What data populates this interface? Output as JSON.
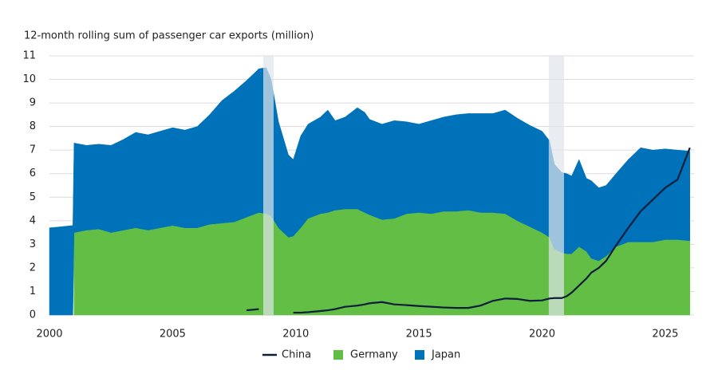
{
  "chart_data": {
    "type": "stacked-area-line",
    "y_label": "12-month rolling sum of passenger car exports (million)",
    "xlim": [
      2000,
      2026.17
    ],
    "xticks": [
      2000,
      2005,
      2010,
      2015,
      2020,
      2025
    ],
    "ylim": [
      0,
      11
    ],
    "yticks": [
      0,
      1,
      2,
      3,
      4,
      5,
      6,
      7,
      8,
      9,
      10,
      11
    ],
    "grid": true,
    "legend": "bottom",
    "shaded_periods": [
      [
        2008.68,
        2009.1
      ],
      [
        2020.27,
        2020.89
      ]
    ],
    "shade_color": "#dfe5ec",
    "x": [
      2000,
      2000.5,
      2000.95,
      2001,
      2001.5,
      2002,
      2002.5,
      2003,
      2003.5,
      2004,
      2004.5,
      2005,
      2005.5,
      2006,
      2006.5,
      2007,
      2007.5,
      2008,
      2008.5,
      2008.8,
      2009,
      2009.3,
      2009.7,
      2009.9,
      2010.2,
      2010.5,
      2011,
      2011.3,
      2011.6,
      2012,
      2012.5,
      2012.8,
      2013,
      2013.5,
      2014,
      2014.5,
      2015,
      2015.5,
      2016,
      2016.5,
      2017,
      2017.5,
      2018,
      2018.5,
      2019,
      2019.5,
      2020,
      2020.3,
      2020.5,
      2020.8,
      2021,
      2021.2,
      2021.5,
      2021.8,
      2022,
      2022.3,
      2022.6,
      2023,
      2023.5,
      2024,
      2024.5,
      2025,
      2025.5,
      2026
    ],
    "series": [
      {
        "name": "China",
        "kind": "line",
        "color": "#0d1e3a",
        "values": [
          null,
          null,
          null,
          null,
          null,
          null,
          null,
          null,
          null,
          null,
          null,
          null,
          null,
          null,
          null,
          null,
          null,
          0.2,
          0.25,
          null,
          null,
          null,
          null,
          0.1,
          0.1,
          0.12,
          0.17,
          0.2,
          0.25,
          0.35,
          0.4,
          0.45,
          0.5,
          0.55,
          0.45,
          0.42,
          0.38,
          0.35,
          0.32,
          0.3,
          0.3,
          0.4,
          0.6,
          0.7,
          0.68,
          0.6,
          0.62,
          0.7,
          0.72,
          0.72,
          0.8,
          0.95,
          1.25,
          1.55,
          1.8,
          2.0,
          2.3,
          2.95,
          3.7,
          4.4,
          4.9,
          5.4,
          5.75,
          7.1
        ]
      },
      {
        "name": "Germany",
        "kind": "area",
        "color": "#63be45",
        "values": [
          null,
          null,
          null,
          3.5,
          3.6,
          3.65,
          3.5,
          3.6,
          3.7,
          3.6,
          3.7,
          3.8,
          3.7,
          3.7,
          3.85,
          3.9,
          3.95,
          4.15,
          4.35,
          4.3,
          4.2,
          3.7,
          3.3,
          3.35,
          3.7,
          4.1,
          4.3,
          4.35,
          4.45,
          4.5,
          4.5,
          4.35,
          4.25,
          4.05,
          4.1,
          4.3,
          4.35,
          4.3,
          4.4,
          4.4,
          4.45,
          4.35,
          4.35,
          4.3,
          4.0,
          3.75,
          3.5,
          3.3,
          2.8,
          2.65,
          2.6,
          2.6,
          2.9,
          2.7,
          2.4,
          2.3,
          2.5,
          2.9,
          3.1,
          3.1,
          3.1,
          3.2,
          3.2,
          3.15
        ]
      },
      {
        "name": "Japan",
        "kind": "area",
        "color": "#0072ba",
        "values": [
          3.7,
          3.75,
          3.8,
          3.8,
          3.6,
          3.6,
          3.7,
          3.85,
          4.05,
          4.05,
          4.1,
          4.15,
          4.15,
          4.3,
          4.65,
          5.2,
          5.55,
          5.8,
          6.1,
          6.2,
          5.8,
          4.5,
          3.5,
          3.25,
          3.9,
          4.0,
          4.1,
          4.35,
          3.8,
          3.9,
          4.3,
          4.25,
          4.05,
          4.05,
          4.15,
          3.9,
          3.75,
          3.95,
          4.0,
          4.1,
          4.1,
          4.2,
          4.2,
          4.4,
          4.35,
          4.3,
          4.3,
          4.1,
          3.6,
          3.4,
          3.4,
          3.3,
          3.7,
          3.1,
          3.3,
          3.1,
          3.0,
          3.1,
          3.5,
          4.0,
          3.9,
          3.85,
          3.8,
          3.8
        ]
      }
    ]
  }
}
